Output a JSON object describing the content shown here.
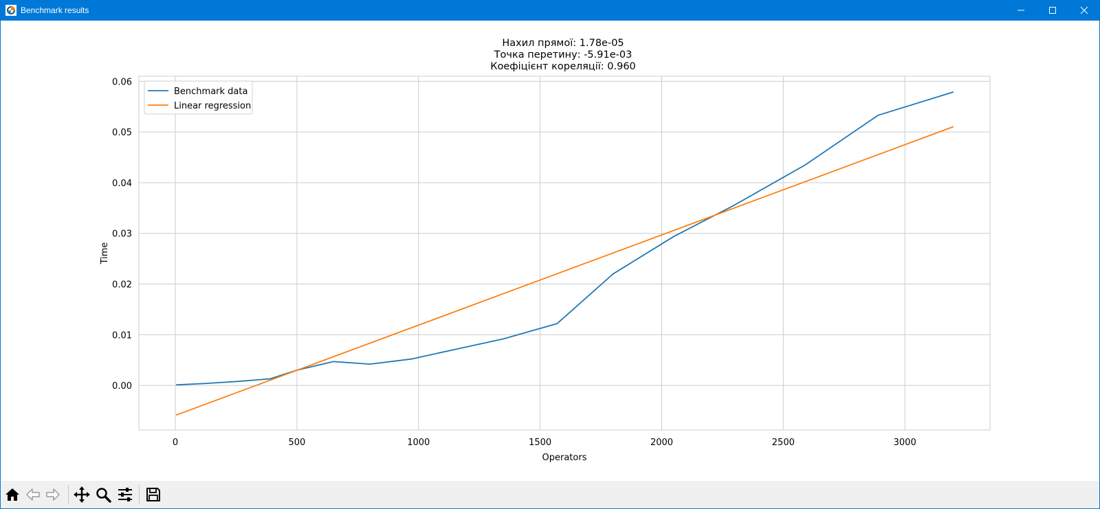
{
  "window": {
    "title": "Benchmark results"
  },
  "toolbar": {
    "buttons": [
      "home-icon",
      "back-arrow-icon",
      "forward-arrow-icon",
      "pan-icon",
      "zoom-icon",
      "configure-subplots-icon",
      "save-icon"
    ]
  },
  "colors": {
    "titlebar": "#0078d7",
    "series_blue": "#1f77b4",
    "series_orange": "#ff7f0e",
    "grid": "#cccccc"
  },
  "chart_data": {
    "type": "line",
    "title_lines": [
      "Нахил прямої: 1.78e-05",
      "Точка перетину: -5.91e-03",
      "Коефіцієнт кореляції: 0.960"
    ],
    "xlabel": "Operators",
    "ylabel": "Time",
    "xlim": [
      -150,
      3350
    ],
    "ylim": [
      -0.0088,
      0.061
    ],
    "xticks": [
      0,
      500,
      1000,
      1500,
      2000,
      2500,
      3000
    ],
    "xtick_labels": [
      "0",
      "500",
      "1000",
      "1500",
      "2000",
      "2500",
      "3000"
    ],
    "yticks": [
      0.0,
      0.01,
      0.02,
      0.03,
      0.04,
      0.05,
      0.06
    ],
    "ytick_labels": [
      "0.00",
      "0.01",
      "0.02",
      "0.03",
      "0.04",
      "0.05",
      "0.06"
    ],
    "grid": true,
    "legend_position": "top-left",
    "series": [
      {
        "name": "Benchmark data",
        "color": "#1f77b4",
        "x": [
          3,
          130,
          260,
          390,
          500,
          650,
          800,
          970,
          1150,
          1350,
          1570,
          1800,
          2050,
          2300,
          2590,
          2890,
          3200
        ],
        "y": [
          0.0001,
          0.0004,
          0.0008,
          0.0013,
          0.003,
          0.0047,
          0.0042,
          0.0052,
          0.0071,
          0.0092,
          0.0122,
          0.022,
          0.0294,
          0.0356,
          0.0435,
          0.0533,
          0.0579
        ]
      },
      {
        "name": "Linear regression",
        "color": "#ff7f0e",
        "x": [
          3,
          3200
        ],
        "y": [
          -0.00586,
          0.05105
        ]
      }
    ]
  }
}
